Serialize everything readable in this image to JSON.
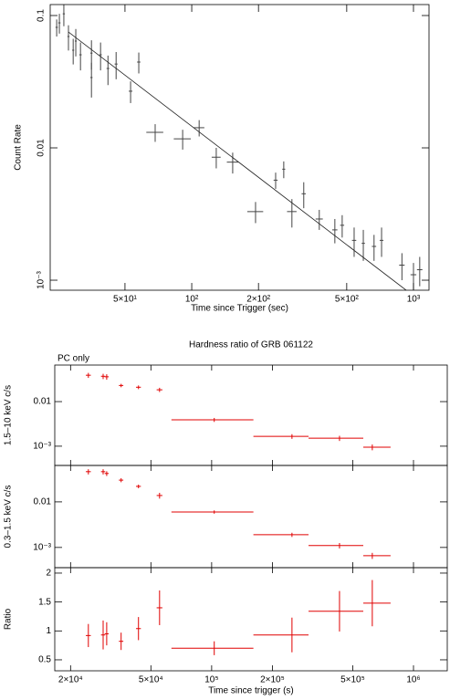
{
  "chart_data": [
    {
      "type": "errorbar",
      "xlabel": "Time since Trigger (sec)",
      "ylabel": "Count Rate",
      "xlog": true,
      "ylog": true,
      "color": "#444444",
      "xlim": [
        23,
        1175
      ],
      "ylim": [
        0.00084,
        0.121
      ],
      "xticks": [
        {
          "value": 50,
          "label": "5×10¹"
        },
        {
          "value": 100,
          "label": "10²"
        },
        {
          "value": 200,
          "label": "2×10²"
        },
        {
          "value": 500,
          "label": "5×10²"
        },
        {
          "value": 1000,
          "label": "10³"
        }
      ],
      "yticks": [
        0.1,
        0.01,
        {
          "value": 0.001,
          "label": "10⁻³"
        }
      ],
      "x": [
        24.6,
        25.3,
        26.5,
        27.8,
        29.2,
        30.0,
        31.5,
        35.3,
        35.3,
        38.8,
        41.9,
        45.6,
        53,
        57.7,
        68.4,
        91,
        108,
        129,
        153,
        194,
        239,
        260,
        283,
        320,
        376,
        442,
        477,
        540,
        594,
        664,
        718,
        887,
        1000,
        1067
      ],
      "xerr": [
        0.3,
        0.3,
        0.3,
        0.3,
        0.3,
        0.3,
        0.4,
        0.4,
        0.4,
        0.5,
        0.6,
        0.7,
        1,
        1,
        6,
        8,
        6,
        6,
        9,
        16,
        5,
        4,
        14,
        7,
        14,
        12,
        10,
        12,
        10,
        15,
        14,
        25,
        30,
        30
      ],
      "y": [
        0.0814,
        0.088,
        0.103,
        0.0694,
        0.0547,
        0.0641,
        0.0505,
        0.052,
        0.034,
        0.0505,
        0.0398,
        0.043,
        0.0268,
        0.0445,
        0.0131,
        0.0117,
        0.0142,
        0.0085,
        0.0078,
        0.0033,
        0.0057,
        0.0069,
        0.0033,
        0.0045,
        0.0029,
        0.0024,
        0.0026,
        0.002,
        0.0019,
        0.0018,
        0.002,
        0.0013,
        0.0011,
        0.0012
      ],
      "yerr": [
        0.012,
        0.015,
        0.02,
        0.015,
        0.012,
        0.015,
        0.012,
        0.013,
        0.01,
        0.012,
        0.01,
        0.01,
        0.005,
        0.008,
        0.002,
        0.002,
        0.002,
        0.0015,
        0.0014,
        0.0006,
        0.0008,
        0.001,
        0.0008,
        0.001,
        0.0005,
        0.0005,
        0.0005,
        0.0005,
        0.0005,
        0.0004,
        0.0005,
        0.0003,
        0.00025,
        0.0003
      ],
      "model": {
        "x": [
          27.8,
          927
        ],
        "y": [
          0.0751,
          0.00084
        ]
      }
    },
    {
      "type": "hardness",
      "title": "Hardness ratio of GRB 061122",
      "annotation": "PC only",
      "xlabel": "Time since trigger (s)",
      "xlog": true,
      "color": "#e00000",
      "xlim": [
        16700,
        1470000
      ],
      "xticks": [
        {
          "value": 20000,
          "label": "2×10⁴"
        },
        {
          "value": 50000,
          "label": "5×10⁴"
        },
        {
          "value": 100000,
          "label": "10⁵"
        },
        {
          "value": 200000,
          "label": "2×10⁵"
        },
        {
          "value": 500000,
          "label": "5×10⁵"
        },
        {
          "value": 1000000,
          "label": "10⁶"
        }
      ],
      "x": [
        24500,
        29000,
        30200,
        35600,
        43400,
        55200,
        103000,
        250000,
        430000,
        625000
      ],
      "x_low": [
        23800,
        28300,
        29500,
        34700,
        42200,
        53400,
        63200,
        161000,
        302000,
        564000
      ],
      "x_high": [
        25200,
        29700,
        30900,
        36500,
        44600,
        57000,
        161000,
        302000,
        564000,
        770000
      ],
      "panels": [
        {
          "ylabel": "1.5–10 keV c/s",
          "ylog": true,
          "ylim": [
            0.00037,
            0.066
          ],
          "yticks": [
            0.01,
            {
              "value": 0.001,
              "label": "10⁻³"
            }
          ],
          "values": [
            0.039,
            0.037,
            0.036,
            0.023,
            0.021,
            0.0184,
            0.0039,
            0.00166,
            0.00151,
            0.00095
          ],
          "errors": [
            0.005,
            0.005,
            0.005,
            0.002,
            0.002,
            0.002,
            0.0004,
            0.0002,
            0.0002,
            0.00014
          ]
        },
        {
          "ylabel": "0.3–1.5 keV c/s",
          "ylog": true,
          "ylim": [
            0.00036,
            0.063
          ],
          "yticks": [
            0.01,
            {
              "value": 0.001,
              "label": "10⁻³"
            }
          ],
          "values": [
            0.046,
            0.046,
            0.042,
            0.03,
            0.0219,
            0.0138,
            0.006,
            0.0019,
            0.0011,
            0.00066
          ],
          "errors": [
            0.006,
            0.006,
            0.005,
            0.003,
            0.002,
            0.002,
            0.0005,
            0.0002,
            0.00015,
            0.0001
          ]
        },
        {
          "ylabel": "Ratio",
          "ylog": false,
          "ylim": [
            0.31,
            2.094
          ],
          "yticks": [
            0.5,
            1,
            1.5,
            2
          ],
          "values": [
            0.92,
            0.93,
            0.95,
            0.82,
            1.04,
            1.4,
            0.7,
            0.93,
            1.34,
            1.48
          ],
          "errors": [
            0.2,
            0.25,
            0.2,
            0.15,
            0.2,
            0.3,
            0.12,
            0.3,
            0.35,
            0.4
          ]
        }
      ]
    }
  ]
}
